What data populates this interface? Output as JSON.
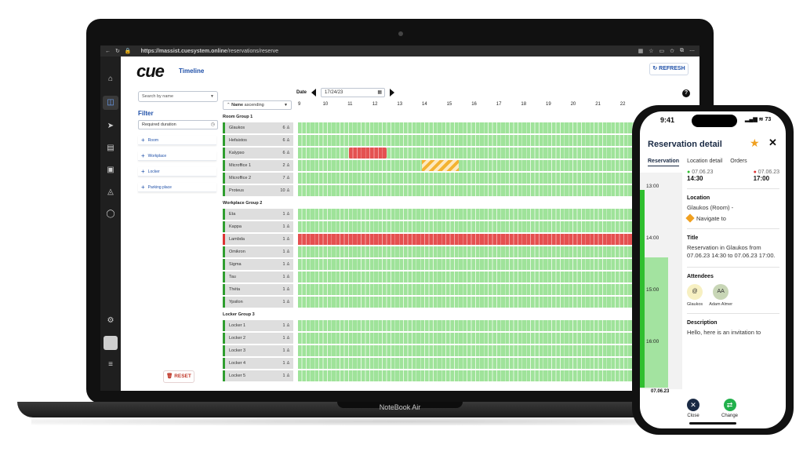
{
  "browser": {
    "url_host": "https://massist.cuesystem.online",
    "url_path": "/reservations/reserve"
  },
  "app": {
    "logo": "cue",
    "title": "Timeline",
    "refresh_label": "REFRESH",
    "reset_label": "RESET",
    "device_label": "NoteBook Air"
  },
  "filters": {
    "search_placeholder": "Search by name",
    "filter_title": "Filter",
    "duration_placeholder": "Required duration",
    "add_items": [
      "Room",
      "Workplace",
      "Locker",
      "Parking place"
    ]
  },
  "timeline": {
    "date_label": "Date",
    "date_value": "17/24/23",
    "sort_label": "Name",
    "sort_direction": "ascending",
    "hours": [
      "9",
      "10",
      "11",
      "12",
      "13",
      "14",
      "15",
      "16",
      "17",
      "18",
      "19",
      "20",
      "21",
      "22"
    ],
    "groups": [
      {
        "name": "Room Group 1",
        "resources": [
          {
            "name": "Glaukos",
            "capacity": "6"
          },
          {
            "name": "Hefaistos",
            "capacity": "6"
          },
          {
            "name": "Kalypso",
            "capacity": "6"
          },
          {
            "name": "Microffice 1",
            "capacity": "2"
          },
          {
            "name": "Microffice 2",
            "capacity": "7"
          },
          {
            "name": "Proteus",
            "capacity": "10"
          }
        ]
      },
      {
        "name": "Workplace Group 2",
        "resources": [
          {
            "name": "Eta",
            "capacity": "1"
          },
          {
            "name": "Kappa",
            "capacity": "1"
          },
          {
            "name": "Lambda",
            "capacity": "1"
          },
          {
            "name": "Omikron",
            "capacity": "1"
          },
          {
            "name": "Sigma",
            "capacity": "1"
          },
          {
            "name": "Tau",
            "capacity": "1"
          },
          {
            "name": "Théta",
            "capacity": "1"
          },
          {
            "name": "Ypsilon",
            "capacity": "1"
          }
        ]
      },
      {
        "name": "Locker Group 3",
        "resources": [
          {
            "name": "Locker 1",
            "capacity": "1"
          },
          {
            "name": "Locker 2",
            "capacity": "1"
          },
          {
            "name": "Locker 3",
            "capacity": "1"
          },
          {
            "name": "Locker 4",
            "capacity": "1"
          },
          {
            "name": "Locker 5",
            "capacity": "1"
          }
        ]
      }
    ]
  },
  "phone": {
    "time": "9:41",
    "battery": "73",
    "title": "Reservation detail",
    "tabs": [
      "Reservation",
      "Location detail",
      "Orders"
    ],
    "rail_hours": [
      "13:00",
      "14:00",
      "15:00",
      "16:00"
    ],
    "rail_date": "07.06.23",
    "start_date": "07.06.23",
    "start_time": "14:30",
    "end_date": "07.06.23",
    "end_time": "17:00",
    "location_label": "Location",
    "location_value": "Glaukos (Room) -",
    "navigate_label": "Navigate to",
    "title_label": "Title",
    "title_value": "Reservation in Glaukos from 07.06.23 14:30 to 07.06.23 17:00.",
    "attendees_label": "Attendees",
    "attendees": [
      {
        "initials": "@",
        "name": "Glaukos"
      },
      {
        "initials": "AA",
        "name": "Adam Almer"
      }
    ],
    "description_label": "Description",
    "description_value": "Hello, here is an invitation to",
    "actions": [
      "Close",
      "Change"
    ]
  },
  "colors": {
    "accent": "#1e4fa8",
    "free": "#9fe39a",
    "busy": "#e55050",
    "pending": "#f3b331"
  }
}
